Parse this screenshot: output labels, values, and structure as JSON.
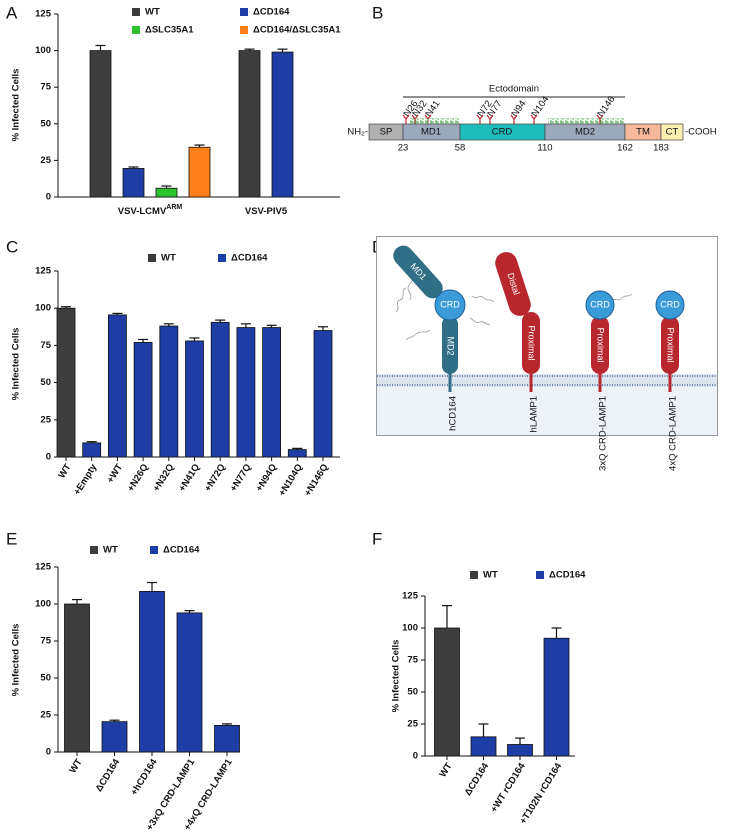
{
  "panel_labels": {
    "a": "A",
    "b": "B",
    "c": "C",
    "d": "D",
    "e": "E",
    "f": "F"
  },
  "chart_data": [
    {
      "type": "bar",
      "y_label": "% Infected Cells",
      "categories": [
        "VSV-LCMV",
        "VSV-PIV5"
      ],
      "category_superscripts": [
        "ARM",
        null
      ],
      "series": [
        {
          "name": "WT",
          "color": "#3d3d3d",
          "values": [
            100,
            100
          ],
          "errors": [
            3.5,
            1
          ]
        },
        {
          "name": "ΔCD164",
          "color": "#1e3ea6",
          "values": [
            19.5,
            99
          ],
          "errors": [
            1,
            2
          ]
        },
        {
          "name": "ΔSLC35A1",
          "color": "#2ec42e",
          "values": [
            6,
            null
          ],
          "errors": [
            1.5,
            null
          ]
        },
        {
          "name": "ΔCD164/ΔSLC35A1",
          "color": "#ff7f1a",
          "values": [
            34,
            null
          ],
          "errors": [
            1.5,
            null
          ]
        }
      ],
      "ylim": [
        0,
        125
      ],
      "yticks": [
        0,
        25,
        50,
        75,
        100,
        125
      ]
    },
    {
      "type": "bar",
      "y_label": "% Infected Cells",
      "categories": [
        "WT",
        "+Empty",
        "+WT",
        "+N26Q",
        "+N32Q",
        "+N41Q",
        "+N72Q",
        "+N77Q",
        "+N94Q",
        "+N104Q",
        "+N146Q"
      ],
      "series": [
        {
          "name": "WT",
          "color": "#3d3d3d",
          "values": [
            100,
            null,
            null,
            null,
            null,
            null,
            null,
            null,
            null,
            null,
            null
          ],
          "errors": [
            1,
            null,
            null,
            null,
            null,
            null,
            null,
            null,
            null,
            null,
            null
          ]
        },
        {
          "name": "ΔCD164",
          "color": "#1e3ea6",
          "values": [
            null,
            9.5,
            95.5,
            77,
            88,
            78,
            90.5,
            87,
            87,
            5,
            85
          ],
          "errors": [
            null,
            0.8,
            1,
            2,
            1.5,
            2,
            1.5,
            2.5,
            1.5,
            0.8,
            2.5
          ]
        }
      ],
      "ylim": [
        0,
        125
      ],
      "yticks": [
        0,
        25,
        50,
        75,
        100,
        125
      ]
    },
    {
      "type": "bar",
      "y_label": "% Infected Cells",
      "categories": [
        "WT",
        "ΔCD164",
        "+hCD164",
        "+3xQ CRD-LAMP1",
        "+4xQ CRD-LAMP1"
      ],
      "series": [
        {
          "name": "WT",
          "color": "#3d3d3d",
          "values": [
            100,
            null,
            null,
            null,
            null
          ],
          "errors": [
            3,
            null,
            null,
            null,
            null
          ]
        },
        {
          "name": "ΔCD164",
          "color": "#1e3ea6",
          "values": [
            null,
            20.5,
            108.5,
            94,
            18
          ],
          "errors": [
            null,
            1,
            6,
            1.5,
            1
          ]
        }
      ],
      "ylim": [
        0,
        125
      ],
      "yticks": [
        0,
        25,
        50,
        75,
        100,
        125
      ]
    },
    {
      "type": "bar",
      "y_label": "% Infected Cells",
      "categories": [
        "WT",
        "ΔCD164",
        "+WT rCD164",
        "+T102N rCD164"
      ],
      "series": [
        {
          "name": "WT",
          "color": "#3d3d3d",
          "values": [
            100,
            null,
            null,
            null
          ],
          "errors": [
            17.5,
            null,
            null,
            null
          ]
        },
        {
          "name": "ΔCD164",
          "color": "#1e3ea6",
          "values": [
            null,
            15,
            9,
            92
          ],
          "errors": [
            null,
            10,
            5,
            8
          ]
        }
      ],
      "ylim": [
        0,
        125
      ],
      "yticks": [
        0,
        25,
        50,
        75,
        100,
        125
      ]
    }
  ],
  "diagram_b": {
    "title": "Ectodomain",
    "glycosites": [
      "N26",
      "N32",
      "N41",
      "N72",
      "N77",
      "N94",
      "N104",
      "N146"
    ],
    "n_terminus": "NH₂-",
    "c_terminus": "-COOH",
    "domains": [
      "SP",
      "MD1",
      "CRD",
      "MD2",
      "TM",
      "CT"
    ],
    "positions": [
      23,
      58,
      110,
      162,
      183
    ]
  },
  "diagram_d": {
    "hcd164": {
      "parts": [
        "MD1",
        "CRD",
        "MD2"
      ],
      "label": "hCD164"
    },
    "hlamp1": {
      "parts": [
        "Distal",
        "Proximal"
      ],
      "label": "hLAMP1"
    },
    "crd3": {
      "parts": [
        "CRD",
        "Proximal"
      ],
      "label": "3xQ CRD-LAMP1"
    },
    "crd4": {
      "parts": [
        "CRD",
        "Proximal"
      ],
      "label": "4xQ CRD-LAMP1"
    }
  }
}
